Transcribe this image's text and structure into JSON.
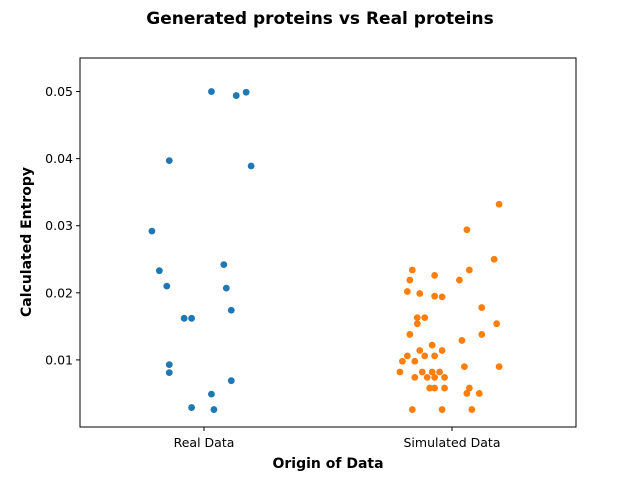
{
  "chart_data": {
    "type": "scatter",
    "title": "Generated proteins vs Real proteins",
    "xlabel": "Origin of Data",
    "ylabel": "Calculated Entropy",
    "categories": [
      "Real Data",
      "Simulated Data"
    ],
    "ylim": [
      0,
      0.055
    ],
    "yticks": [
      "0.01",
      "0.02",
      "0.03",
      "0.04",
      "0.05"
    ],
    "grid": false,
    "series": [
      {
        "category": "Real Data",
        "color": "#1f77b4",
        "points": [
          {
            "x": 0.03,
            "y": 0.05
          },
          {
            "x": 0.13,
            "y": 0.0494
          },
          {
            "x": 0.17,
            "y": 0.0499
          },
          {
            "x": -0.14,
            "y": 0.0397
          },
          {
            "x": 0.19,
            "y": 0.0389
          },
          {
            "x": -0.21,
            "y": 0.0292
          },
          {
            "x": -0.18,
            "y": 0.0233
          },
          {
            "x": 0.08,
            "y": 0.0242
          },
          {
            "x": -0.15,
            "y": 0.021
          },
          {
            "x": 0.09,
            "y": 0.0207
          },
          {
            "x": 0.11,
            "y": 0.0174
          },
          {
            "x": -0.08,
            "y": 0.0162
          },
          {
            "x": -0.05,
            "y": 0.0162
          },
          {
            "x": -0.14,
            "y": 0.0093
          },
          {
            "x": -0.14,
            "y": 0.0081
          },
          {
            "x": 0.11,
            "y": 0.0069
          },
          {
            "x": 0.03,
            "y": 0.0049
          },
          {
            "x": -0.05,
            "y": 0.0029
          },
          {
            "x": 0.04,
            "y": 0.0026
          }
        ]
      },
      {
        "category": "Simulated Data",
        "color": "#ff7f0e",
        "points": [
          {
            "x": 0.19,
            "y": 0.0332
          },
          {
            "x": 0.06,
            "y": 0.0294
          },
          {
            "x": 0.17,
            "y": 0.025
          },
          {
            "x": -0.16,
            "y": 0.0234
          },
          {
            "x": 0.07,
            "y": 0.0234
          },
          {
            "x": -0.07,
            "y": 0.0226
          },
          {
            "x": -0.17,
            "y": 0.0219
          },
          {
            "x": 0.03,
            "y": 0.0219
          },
          {
            "x": -0.18,
            "y": 0.0202
          },
          {
            "x": -0.13,
            "y": 0.0199
          },
          {
            "x": -0.07,
            "y": 0.0195
          },
          {
            "x": -0.04,
            "y": 0.0194
          },
          {
            "x": 0.12,
            "y": 0.0178
          },
          {
            "x": -0.14,
            "y": 0.0163
          },
          {
            "x": -0.11,
            "y": 0.0163
          },
          {
            "x": -0.14,
            "y": 0.0154
          },
          {
            "x": 0.18,
            "y": 0.0154
          },
          {
            "x": -0.17,
            "y": 0.0138
          },
          {
            "x": 0.12,
            "y": 0.0138
          },
          {
            "x": 0.04,
            "y": 0.0129
          },
          {
            "x": -0.08,
            "y": 0.0122
          },
          {
            "x": -0.13,
            "y": 0.0114
          },
          {
            "x": -0.04,
            "y": 0.0114
          },
          {
            "x": -0.18,
            "y": 0.0106
          },
          {
            "x": -0.11,
            "y": 0.0106
          },
          {
            "x": -0.07,
            "y": 0.0106
          },
          {
            "x": -0.2,
            "y": 0.0098
          },
          {
            "x": -0.15,
            "y": 0.0098
          },
          {
            "x": 0.05,
            "y": 0.009
          },
          {
            "x": 0.19,
            "y": 0.009
          },
          {
            "x": -0.21,
            "y": 0.0082
          },
          {
            "x": -0.12,
            "y": 0.0082
          },
          {
            "x": -0.08,
            "y": 0.0082
          },
          {
            "x": -0.05,
            "y": 0.0082
          },
          {
            "x": -0.15,
            "y": 0.0074
          },
          {
            "x": -0.1,
            "y": 0.0074
          },
          {
            "x": -0.07,
            "y": 0.0074
          },
          {
            "x": -0.03,
            "y": 0.0074
          },
          {
            "x": -0.09,
            "y": 0.0058
          },
          {
            "x": -0.07,
            "y": 0.0058
          },
          {
            "x": -0.03,
            "y": 0.0058
          },
          {
            "x": 0.07,
            "y": 0.0058
          },
          {
            "x": 0.06,
            "y": 0.005
          },
          {
            "x": 0.11,
            "y": 0.005
          },
          {
            "x": -0.16,
            "y": 0.0026
          },
          {
            "x": -0.04,
            "y": 0.0026
          },
          {
            "x": 0.08,
            "y": 0.0026
          }
        ]
      }
    ]
  }
}
